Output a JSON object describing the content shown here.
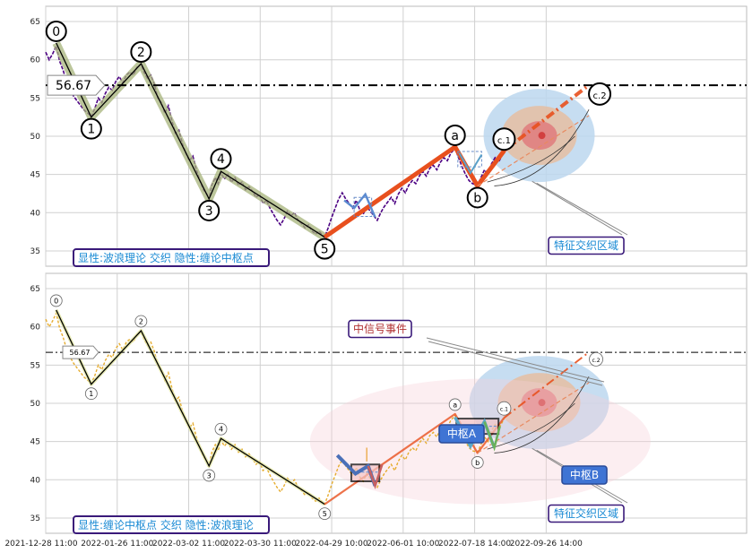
{
  "chart_data": {
    "type": "line",
    "title": "",
    "ylim": [
      33,
      67
    ],
    "yticks": [
      35,
      40,
      45,
      50,
      55,
      60,
      65
    ],
    "xlim": [
      0,
      100
    ],
    "xtick_labels": [
      {
        "x": 0,
        "label": "2021-12-28 11:00"
      },
      {
        "x": 10.2,
        "label": "2022-01-26 11:00"
      },
      {
        "x": 20.4,
        "label": "2022-03-02 11:00"
      },
      {
        "x": 30.6,
        "label": "2022-03-30 11:00"
      },
      {
        "x": 40.8,
        "label": "2022-04-29 10:00"
      },
      {
        "x": 51.0,
        "label": "2022-06-01 10:00"
      },
      {
        "x": 61.2,
        "label": "2022-07-18 14:00"
      },
      {
        "x": 71.4,
        "label": "2022-09-26 14:00"
      }
    ],
    "reference_level": {
      "value": 56.67,
      "label": "56.67"
    },
    "wave_points": [
      {
        "label": "0",
        "x": 1.5,
        "y": 62.2
      },
      {
        "label": "1",
        "x": 6.5,
        "y": 52.5
      },
      {
        "label": "2",
        "x": 13.6,
        "y": 59.5
      },
      {
        "label": "3",
        "x": 23.3,
        "y": 41.8
      },
      {
        "label": "4",
        "x": 25.0,
        "y": 45.4
      },
      {
        "label": "5",
        "x": 39.8,
        "y": 36.8
      },
      {
        "label": "a",
        "x": 58.4,
        "y": 48.6
      },
      {
        "label": "b",
        "x": 61.6,
        "y": 43.5
      },
      {
        "label": "c.1",
        "x": 65.4,
        "y": 48.1
      },
      {
        "label": "c.2",
        "x": 77.5,
        "y": 56.7
      }
    ],
    "price_series": [
      [
        0.0,
        61.0
      ],
      [
        0.5,
        60.0
      ],
      [
        1.0,
        60.8
      ],
      [
        1.5,
        61.8
      ],
      [
        2.0,
        59.8
      ],
      [
        2.5,
        58.6
      ],
      [
        3.0,
        57.0
      ],
      [
        3.5,
        56.0
      ],
      [
        4.0,
        55.2
      ],
      [
        4.5,
        54.6
      ],
      [
        5.0,
        54.0
      ],
      [
        5.5,
        53.4
      ],
      [
        6.0,
        53.0
      ],
      [
        6.5,
        52.6
      ],
      [
        7.0,
        53.6
      ],
      [
        7.5,
        55.0
      ],
      [
        8.0,
        54.4
      ],
      [
        8.5,
        55.6
      ],
      [
        9.0,
        56.4
      ],
      [
        9.5,
        56.0
      ],
      [
        10.0,
        57.2
      ],
      [
        10.5,
        57.8
      ],
      [
        11.0,
        57.0
      ],
      [
        11.5,
        58.0
      ],
      [
        12.0,
        58.4
      ],
      [
        12.5,
        58.0
      ],
      [
        13.0,
        59.0
      ],
      [
        13.6,
        59.4
      ],
      [
        14.0,
        58.4
      ],
      [
        14.5,
        57.6
      ],
      [
        15.0,
        58.0
      ],
      [
        15.5,
        56.8
      ],
      [
        16.0,
        55.0
      ],
      [
        16.5,
        54.4
      ],
      [
        17.0,
        53.0
      ],
      [
        17.5,
        54.0
      ],
      [
        18.0,
        52.0
      ],
      [
        18.5,
        50.4
      ],
      [
        19.0,
        50.8
      ],
      [
        19.5,
        49.0
      ],
      [
        20.0,
        47.8
      ],
      [
        20.5,
        46.8
      ],
      [
        21.0,
        47.4
      ],
      [
        21.5,
        45.6
      ],
      [
        22.0,
        44.2
      ],
      [
        22.5,
        43.0
      ],
      [
        23.0,
        42.4
      ],
      [
        23.3,
        41.8
      ],
      [
        23.7,
        43.6
      ],
      [
        24.2,
        44.6
      ],
      [
        24.6,
        43.8
      ],
      [
        25.0,
        45.2
      ],
      [
        25.5,
        44.4
      ],
      [
        26.0,
        45.0
      ],
      [
        26.5,
        44.0
      ],
      [
        27.0,
        44.6
      ],
      [
        27.5,
        43.6
      ],
      [
        28.0,
        44.0
      ],
      [
        28.5,
        43.0
      ],
      [
        29.0,
        43.4
      ],
      [
        29.5,
        42.8
      ],
      [
        30.0,
        42.0
      ],
      [
        30.5,
        42.4
      ],
      [
        31.0,
        41.2
      ],
      [
        31.5,
        41.6
      ],
      [
        32.0,
        40.6
      ],
      [
        32.5,
        39.8
      ],
      [
        33.0,
        39.0
      ],
      [
        33.5,
        38.4
      ],
      [
        34.0,
        39.2
      ],
      [
        34.5,
        40.2
      ],
      [
        35.0,
        39.6
      ],
      [
        35.5,
        40.0
      ],
      [
        36.0,
        39.0
      ],
      [
        36.5,
        38.6
      ],
      [
        37.0,
        38.0
      ],
      [
        37.5,
        38.4
      ],
      [
        38.0,
        37.6
      ],
      [
        38.5,
        37.2
      ],
      [
        39.0,
        37.6
      ],
      [
        39.5,
        37.0
      ],
      [
        39.8,
        36.8
      ],
      [
        40.3,
        38.0
      ],
      [
        40.8,
        39.4
      ],
      [
        41.3,
        40.6
      ],
      [
        41.8,
        41.8
      ],
      [
        42.3,
        42.6
      ],
      [
        42.8,
        41.8
      ],
      [
        43.3,
        41.2
      ],
      [
        43.8,
        40.6
      ],
      [
        44.3,
        41.6
      ],
      [
        44.8,
        40.4
      ],
      [
        45.3,
        39.8
      ],
      [
        45.8,
        40.8
      ],
      [
        46.3,
        40.2
      ],
      [
        46.8,
        39.6
      ],
      [
        47.3,
        39.0
      ],
      [
        47.8,
        40.0
      ],
      [
        48.3,
        40.8
      ],
      [
        48.8,
        41.4
      ],
      [
        49.3,
        42.0
      ],
      [
        49.8,
        41.2
      ],
      [
        50.3,
        42.4
      ],
      [
        50.8,
        43.2
      ],
      [
        51.3,
        42.6
      ],
      [
        51.8,
        43.6
      ],
      [
        52.3,
        44.2
      ],
      [
        52.8,
        43.8
      ],
      [
        53.3,
        44.8
      ],
      [
        53.8,
        45.4
      ],
      [
        54.3,
        44.8
      ],
      [
        54.8,
        45.8
      ],
      [
        55.3,
        46.2
      ],
      [
        55.8,
        45.6
      ],
      [
        56.3,
        46.6
      ],
      [
        56.8,
        47.2
      ],
      [
        57.3,
        46.8
      ],
      [
        57.8,
        47.8
      ],
      [
        58.4,
        48.4
      ],
      [
        58.9,
        47.2
      ],
      [
        59.4,
        46.0
      ],
      [
        59.9,
        45.0
      ],
      [
        60.4,
        44.2
      ],
      [
        60.9,
        43.8
      ],
      [
        61.6,
        43.6
      ],
      [
        62.1,
        44.6
      ],
      [
        62.6,
        45.6
      ],
      [
        63.1,
        45.0
      ],
      [
        63.6,
        46.4
      ],
      [
        64.1,
        47.2
      ],
      [
        64.6,
        46.6
      ],
      [
        65.4,
        48.0
      ]
    ],
    "panels": [
      {
        "name": "top",
        "caption": "显性:波浪理论 交织 隐性:缠论中枢点",
        "region_label": "特征交织区域",
        "line_color": "#4b0082"
      },
      {
        "name": "bottom",
        "caption": "显性:缠论中枢点 交织 隐性:波浪理论",
        "region_label": "特征交织区域",
        "event_label": "中信号事件",
        "pivot_a": "中枢A",
        "pivot_b": "中枢B",
        "line_color": "#e6ac2e"
      }
    ],
    "colors": {
      "impulse_band": "#a6b37a",
      "correction_line": "#e8501e",
      "target_outer": "#bcd7ef",
      "target_mid": "#e3c0a6",
      "target_inner": "#e08080",
      "target_core": "#d24040",
      "caption_border": "#3a1a7a",
      "caption_text": "#1a8ad4",
      "pivot_box": "#3f74d4",
      "event_text": "#b03030"
    }
  }
}
